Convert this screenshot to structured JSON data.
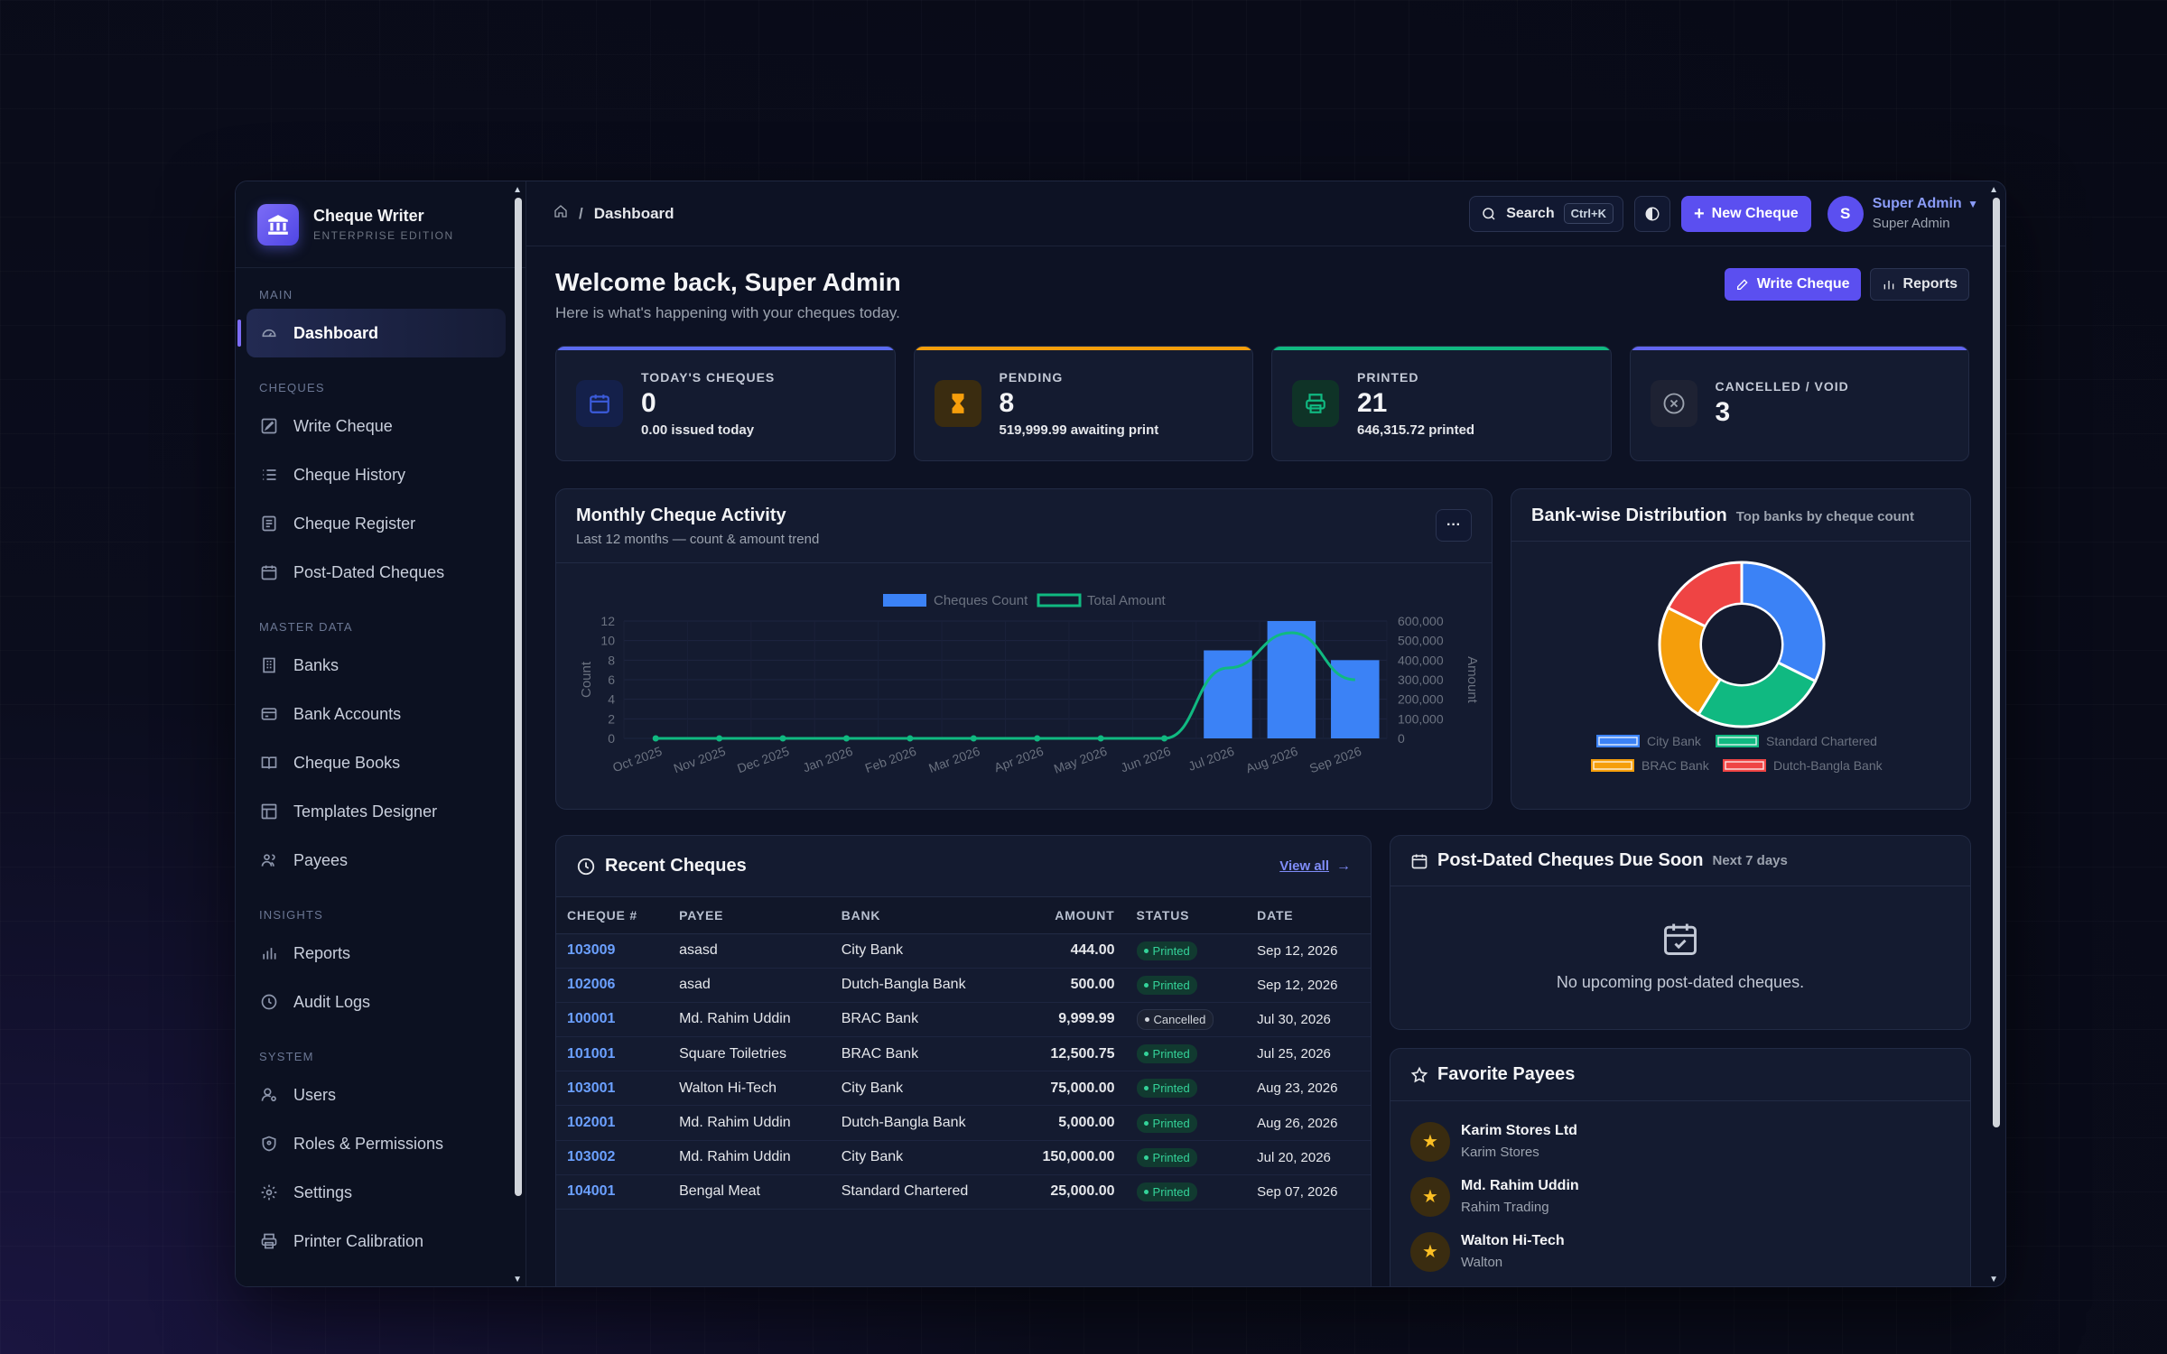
{
  "brand": {
    "title": "Cheque Writer",
    "subtitle": "ENTERPRISE EDITION"
  },
  "sidebar": {
    "sections": [
      {
        "label": "MAIN",
        "items": [
          {
            "label": "Dashboard",
            "icon": "dashboard-icon",
            "active": true
          }
        ]
      },
      {
        "label": "CHEQUES",
        "items": [
          {
            "label": "Write Cheque",
            "icon": "edit-icon"
          },
          {
            "label": "Cheque History",
            "icon": "list-icon"
          },
          {
            "label": "Cheque Register",
            "icon": "register-icon"
          },
          {
            "label": "Post-Dated Cheques",
            "icon": "calendar-icon"
          }
        ]
      },
      {
        "label": "MASTER DATA",
        "items": [
          {
            "label": "Banks",
            "icon": "building-icon"
          },
          {
            "label": "Bank Accounts",
            "icon": "card-icon"
          },
          {
            "label": "Cheque Books",
            "icon": "book-icon"
          },
          {
            "label": "Templates Designer",
            "icon": "template-icon"
          },
          {
            "label": "Payees",
            "icon": "users-icon"
          }
        ]
      },
      {
        "label": "INSIGHTS",
        "items": [
          {
            "label": "Reports",
            "icon": "bar-chart-icon"
          },
          {
            "label": "Audit Logs",
            "icon": "clock-icon"
          }
        ]
      },
      {
        "label": "SYSTEM",
        "items": [
          {
            "label": "Users",
            "icon": "user-gear-icon"
          },
          {
            "label": "Roles & Permissions",
            "icon": "shield-icon"
          },
          {
            "label": "Settings",
            "icon": "gear-icon"
          },
          {
            "label": "Printer Calibration",
            "icon": "printer-icon"
          }
        ]
      }
    ]
  },
  "topbar": {
    "breadcrumb": "Dashboard",
    "search_label": "Search",
    "search_shortcut": "Ctrl+K",
    "new_label": "New Cheque",
    "user_initial": "S",
    "user_name": "Super Admin",
    "user_role": "Super Admin"
  },
  "welcome": {
    "title": "Welcome back, Super Admin",
    "subtitle": "Here is what's happening with your cheques today.",
    "write_label": "Write Cheque",
    "reports_label": "Reports"
  },
  "stats": [
    {
      "label": "TODAY'S CHEQUES",
      "value": "0",
      "sub": "0.00 issued today",
      "accent": "#5b6bf0",
      "icon": "calendar-icon"
    },
    {
      "label": "PENDING",
      "value": "8",
      "sub": "519,999.99 awaiting print",
      "accent": "#f59e0b",
      "icon": "hourglass-icon"
    },
    {
      "label": "PRINTED",
      "value": "21",
      "sub": "646,315.72 printed",
      "accent": "#10b981",
      "icon": "printer-icon"
    },
    {
      "label": "CANCELLED / VOID",
      "value": "3",
      "sub": "",
      "accent": "#6366f1",
      "icon": "cancel-icon"
    }
  ],
  "activity": {
    "title": "Monthly Cheque Activity",
    "subtitle": "Last 12 months — count & amount trend",
    "more": "···"
  },
  "distribution": {
    "title": "Bank-wise Distribution",
    "subtitle": "Top banks by cheque count"
  },
  "chart_data": [
    {
      "type": "bar",
      "title": "Monthly Cheque Activity",
      "categories": [
        "Oct 2025",
        "Nov 2025",
        "Dec 2025",
        "Jan 2026",
        "Feb 2026",
        "Mar 2026",
        "Apr 2026",
        "May 2026",
        "Jun 2026",
        "Jul 2026",
        "Aug 2026",
        "Sep 2026"
      ],
      "series": [
        {
          "name": "Cheques Count",
          "type": "bar",
          "axis": "left",
          "values": [
            0,
            0,
            0,
            0,
            0,
            0,
            0,
            0,
            0,
            9,
            12,
            8
          ],
          "color": "#3b82f6"
        },
        {
          "name": "Total Amount",
          "type": "line",
          "axis": "right",
          "values": [
            0,
            0,
            0,
            0,
            0,
            0,
            0,
            0,
            0,
            360000,
            540000,
            300000
          ],
          "color": "#10b981"
        }
      ],
      "ylabel": "Count",
      "y2label": "Amount",
      "yticks": [
        "0",
        "2",
        "4",
        "6",
        "8",
        "10",
        "12"
      ],
      "y2ticks": [
        "0",
        "100,000",
        "200,000",
        "300,000",
        "400,000",
        "500,000",
        "600,000"
      ],
      "ylim": [
        0,
        12
      ],
      "y2lim": [
        0,
        600000
      ],
      "legend": "top"
    },
    {
      "type": "pie",
      "title": "Bank-wise Distribution",
      "categories": [
        "City Bank",
        "Standard Chartered",
        "BRAC Bank",
        "Dutch-Bangla Bank"
      ],
      "values": [
        11,
        9,
        8,
        6
      ],
      "colors": [
        "#3b82f6",
        "#10b981",
        "#f59e0b",
        "#ef4444"
      ],
      "legend": "bottom"
    }
  ],
  "recent": {
    "title": "Recent Cheques",
    "view_all": "View all",
    "columns": [
      "CHEQUE #",
      "PAYEE",
      "BANK",
      "AMOUNT",
      "STATUS",
      "DATE"
    ],
    "rows": [
      {
        "no": "103009",
        "payee": "asasd",
        "bank": "City Bank",
        "amount": "444.00",
        "status": "Printed",
        "date": "Sep 12, 2026"
      },
      {
        "no": "102006",
        "payee": "asad",
        "bank": "Dutch-Bangla Bank",
        "amount": "500.00",
        "status": "Printed",
        "date": "Sep 12, 2026"
      },
      {
        "no": "100001",
        "payee": "Md. Rahim Uddin",
        "bank": "BRAC Bank",
        "amount": "9,999.99",
        "status": "Cancelled",
        "date": "Jul 30, 2026"
      },
      {
        "no": "101001",
        "payee": "Square Toiletries",
        "bank": "BRAC Bank",
        "amount": "12,500.75",
        "status": "Printed",
        "date": "Jul 25, 2026"
      },
      {
        "no": "103001",
        "payee": "Walton Hi-Tech",
        "bank": "City Bank",
        "amount": "75,000.00",
        "status": "Printed",
        "date": "Aug 23, 2026"
      },
      {
        "no": "102001",
        "payee": "Md. Rahim Uddin",
        "bank": "Dutch-Bangla Bank",
        "amount": "5,000.00",
        "status": "Printed",
        "date": "Aug 26, 2026"
      },
      {
        "no": "103002",
        "payee": "Md. Rahim Uddin",
        "bank": "City Bank",
        "amount": "150,000.00",
        "status": "Printed",
        "date": "Jul 20, 2026"
      },
      {
        "no": "104001",
        "payee": "Bengal Meat",
        "bank": "Standard Chartered",
        "amount": "25,000.00",
        "status": "Printed",
        "date": "Sep 07, 2026"
      }
    ]
  },
  "pdc": {
    "title": "Post-Dated Cheques Due Soon",
    "subtitle": "Next 7 days",
    "empty": "No upcoming post-dated cheques."
  },
  "favorites": {
    "title": "Favorite Payees",
    "items": [
      {
        "name": "Karim Stores Ltd",
        "sub": "Karim Stores"
      },
      {
        "name": "Md. Rahim Uddin",
        "sub": "Rahim Trading"
      },
      {
        "name": "Walton Hi-Tech",
        "sub": "Walton"
      }
    ]
  }
}
